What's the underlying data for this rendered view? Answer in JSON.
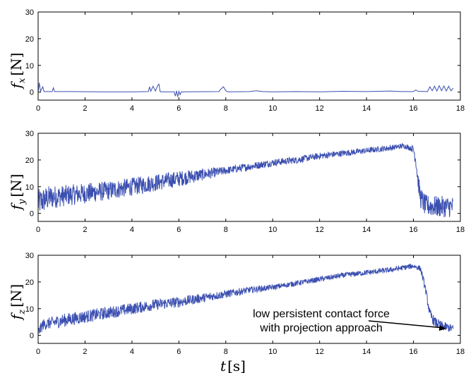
{
  "chart_data": [
    {
      "type": "line",
      "ylabel": {
        "symbol": "f",
        "subscript": "x",
        "unit": "[N]"
      },
      "xlim": [
        0,
        18
      ],
      "ylim": [
        -3,
        30
      ],
      "xticks": [
        0,
        2,
        4,
        6,
        8,
        10,
        12,
        14,
        16,
        18
      ],
      "yticks": [
        0,
        10,
        20,
        30
      ],
      "series": [
        {
          "color": "#3b4fb0",
          "points": [
            [
              0,
              0.2
            ],
            [
              0.05,
              3.5
            ],
            [
              0.1,
              0.3
            ],
            [
              0.2,
              2.0
            ],
            [
              0.25,
              0.2
            ],
            [
              0.6,
              0.2
            ],
            [
              0.65,
              1.6
            ],
            [
              0.7,
              0.2
            ],
            [
              1.5,
              0.2
            ],
            [
              2.9,
              0.1
            ],
            [
              4.0,
              0.1
            ],
            [
              4.7,
              0.2
            ],
            [
              4.75,
              2.0
            ],
            [
              4.8,
              0.3
            ],
            [
              4.9,
              2.2
            ],
            [
              5.0,
              0.4
            ],
            [
              5.1,
              2.5
            ],
            [
              5.15,
              3.0
            ],
            [
              5.2,
              0.2
            ],
            [
              5.3,
              0.1
            ],
            [
              5.8,
              0.1
            ],
            [
              5.85,
              -1.5
            ],
            [
              5.9,
              0.5
            ],
            [
              5.95,
              -1.8
            ],
            [
              6.0,
              0.3
            ],
            [
              6.05,
              -1.0
            ],
            [
              6.1,
              0.1
            ],
            [
              7.7,
              0.2
            ],
            [
              7.8,
              1.2
            ],
            [
              7.9,
              2.0
            ],
            [
              8.0,
              0.5
            ],
            [
              8.1,
              0.1
            ],
            [
              9.0,
              0.2
            ],
            [
              9.3,
              0.5
            ],
            [
              9.6,
              0.2
            ],
            [
              10.0,
              0.1
            ],
            [
              11.0,
              0.2
            ],
            [
              12.0,
              0.1
            ],
            [
              13.0,
              0.3
            ],
            [
              14.0,
              0.2
            ],
            [
              15.0,
              0.4
            ],
            [
              15.5,
              0.2
            ],
            [
              16.0,
              0.2
            ],
            [
              16.1,
              0.8
            ],
            [
              16.2,
              0.3
            ],
            [
              16.6,
              0.2
            ],
            [
              16.7,
              2.0
            ],
            [
              16.8,
              0.5
            ],
            [
              16.9,
              2.2
            ],
            [
              17.0,
              0.4
            ],
            [
              17.1,
              2.4
            ],
            [
              17.2,
              0.5
            ],
            [
              17.3,
              2.3
            ],
            [
              17.4,
              0.4
            ],
            [
              17.5,
              2.2
            ],
            [
              17.6,
              0.5
            ],
            [
              17.7,
              1.5
            ]
          ]
        }
      ]
    },
    {
      "type": "line",
      "ylabel": {
        "symbol": "f",
        "subscript": "y",
        "unit": "[N]"
      },
      "xlim": [
        0,
        18
      ],
      "ylim": [
        -3,
        30
      ],
      "xticks": [
        0,
        2,
        4,
        6,
        8,
        10,
        12,
        14,
        16,
        18
      ],
      "yticks": [
        0,
        10,
        20,
        30
      ],
      "series": [
        {
          "color": "#3b4fb0",
          "points": [
            [
              0,
              4
            ],
            [
              0.5,
              6
            ],
            [
              1,
              6.5
            ],
            [
              2,
              7.5
            ],
            [
              3,
              8.5
            ],
            [
              4,
              10
            ],
            [
              5,
              11.5
            ],
            [
              6,
              13
            ],
            [
              7,
              14.5
            ],
            [
              8,
              16
            ],
            [
              9,
              17.5
            ],
            [
              10,
              19
            ],
            [
              11,
              20
            ],
            [
              12,
              21.5
            ],
            [
              13,
              22.5
            ],
            [
              14,
              23.5
            ],
            [
              15,
              24.5
            ],
            [
              15.6,
              25.3
            ],
            [
              16.0,
              24
            ],
            [
              16.1,
              20
            ],
            [
              16.2,
              12
            ],
            [
              16.3,
              6
            ],
            [
              16.5,
              3
            ],
            [
              17,
              2.5
            ],
            [
              17.7,
              2.5
            ]
          ],
          "noise": [
            [
              0,
              5
            ],
            [
              1,
              4
            ],
            [
              6,
              3
            ],
            [
              8,
              1.5
            ],
            [
              15.9,
              1
            ],
            [
              16.3,
              4
            ],
            [
              17.7,
              4
            ]
          ]
        }
      ]
    },
    {
      "type": "line",
      "ylabel": {
        "symbol": "f",
        "subscript": "z",
        "unit": "[N]"
      },
      "xlabel": {
        "symbol": "t",
        "unit": "[s]"
      },
      "xlim": [
        0,
        18
      ],
      "ylim": [
        -3,
        30
      ],
      "xticks": [
        0,
        2,
        4,
        6,
        8,
        10,
        12,
        14,
        16,
        18
      ],
      "yticks": [
        0,
        10,
        20,
        30
      ],
      "annotation": {
        "lines": [
          "low persistent contact force",
          "with projection approach"
        ],
        "arrow_to": [
          17.4,
          2.5
        ]
      },
      "series": [
        {
          "color": "#3b4fb0",
          "points": [
            [
              0,
              1
            ],
            [
              0.2,
              4
            ],
            [
              1,
              5.5
            ],
            [
              2,
              7
            ],
            [
              3,
              8.5
            ],
            [
              4,
              10
            ],
            [
              5,
              11.5
            ],
            [
              6,
              12.5
            ],
            [
              7,
              14
            ],
            [
              8,
              15.5
            ],
            [
              9,
              17
            ],
            [
              10,
              18
            ],
            [
              11,
              19.5
            ],
            [
              12,
              21
            ],
            [
              13,
              22.5
            ],
            [
              14,
              23.5
            ],
            [
              15,
              24.5
            ],
            [
              16,
              26
            ],
            [
              16.3,
              25
            ],
            [
              16.5,
              18
            ],
            [
              16.7,
              8
            ],
            [
              16.9,
              5
            ],
            [
              17.2,
              3.5
            ],
            [
              17.7,
              2.5
            ]
          ],
          "noise": [
            [
              0,
              2
            ],
            [
              1,
              2.5
            ],
            [
              6,
              2
            ],
            [
              10,
              1
            ],
            [
              16.2,
              1
            ],
            [
              16.8,
              2
            ],
            [
              17.7,
              1.5
            ]
          ]
        }
      ]
    }
  ]
}
